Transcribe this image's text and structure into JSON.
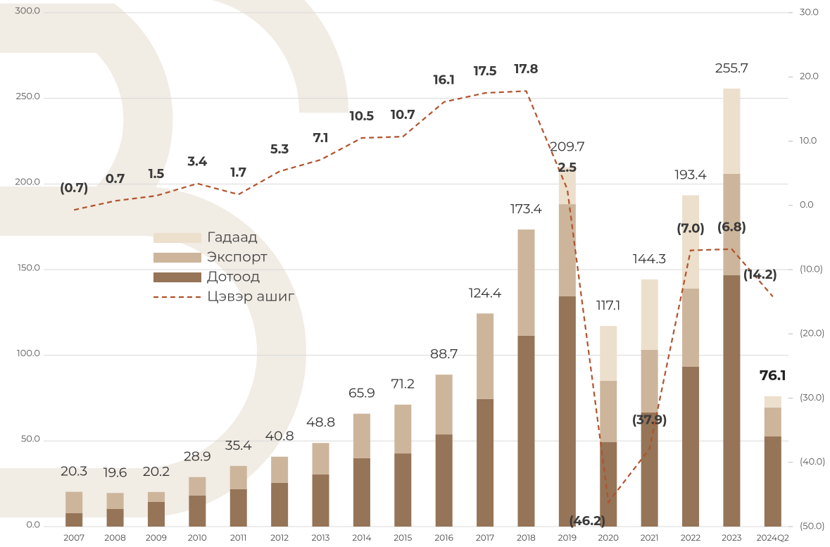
{
  "chart_data": {
    "type": "bar",
    "categories": [
      "2007",
      "2008",
      "2009",
      "2010",
      "2011",
      "2012",
      "2013",
      "2014",
      "2015",
      "2016",
      "2017",
      "2018",
      "2019",
      "2020",
      "2021",
      "2022",
      "2023",
      "2024Q2"
    ],
    "series": [
      {
        "name": "Дотоод",
        "color": "#957457",
        "values": [
          7.8,
          10.3,
          14.4,
          18.1,
          21.8,
          25.5,
          30.4,
          39.9,
          42.7,
          53.8,
          74.4,
          111.4,
          134.4,
          49.3,
          66.6,
          93.3,
          146.7,
          52.6
        ]
      },
      {
        "name": "Экспорт",
        "color": "#cdb59b",
        "values": [
          12.5,
          9.3,
          5.8,
          10.8,
          13.6,
          15.3,
          18.4,
          26.0,
          28.5,
          34.9,
          50.0,
          62.0,
          53.8,
          35.8,
          36.6,
          45.6,
          59.2,
          16.9
        ]
      },
      {
        "name": "Гадаад",
        "color": "#ecdfcc",
        "values": [
          0,
          0,
          0,
          0,
          0,
          0,
          0,
          0,
          0,
          0,
          0,
          0,
          21.5,
          32.0,
          41.1,
          54.5,
          49.8,
          6.6
        ]
      },
      {
        "name": "Цэвэр ашиг",
        "color": "#b0532d",
        "axis": "y2",
        "type": "line",
        "dashed": true,
        "values": [
          -0.7,
          0.7,
          1.5,
          3.4,
          1.7,
          5.3,
          7.1,
          10.5,
          10.7,
          16.1,
          17.5,
          17.8,
          2.5,
          -46.2,
          -37.9,
          -7.0,
          -6.8,
          -14.2
        ],
        "value_labels": [
          "(0.7)",
          "0.7",
          "1.5",
          "3.4",
          "1.7",
          "5.3",
          "7.1",
          "10.5",
          "10.7",
          "16.1",
          "17.5",
          "17.8",
          "2.5",
          "(46.2)",
          "(37.9)",
          "(7.0)",
          "(6.8)",
          "(14.2)"
        ]
      }
    ],
    "totals": [
      20.3,
      19.6,
      20.2,
      28.9,
      35.4,
      40.8,
      48.8,
      65.9,
      71.2,
      88.7,
      124.4,
      173.4,
      209.7,
      117.1,
      144.3,
      193.4,
      255.7,
      76.1
    ],
    "ylim": [
      0,
      300
    ],
    "yticks": [
      {
        "value": 0,
        "label": "0.0"
      },
      {
        "value": 50,
        "label": "50.0"
      },
      {
        "value": 100,
        "label": "100.0"
      },
      {
        "value": 150,
        "label": "150.0"
      },
      {
        "value": 200,
        "label": "200.0"
      },
      {
        "value": 250,
        "label": "250.0"
      },
      {
        "value": 300,
        "label": "300.0"
      }
    ],
    "y2lim": [
      -50,
      30
    ],
    "y2ticks": [
      {
        "value": -50,
        "label": "(50.0)"
      },
      {
        "value": -40,
        "label": "(40.0)"
      },
      {
        "value": -30,
        "label": "(30.0)"
      },
      {
        "value": -20,
        "label": "(20.0)"
      },
      {
        "value": -10,
        "label": "(10.0)"
      },
      {
        "value": 0,
        "label": "0.0"
      },
      {
        "value": 10,
        "label": "10.0"
      },
      {
        "value": 20,
        "label": "20.0"
      },
      {
        "value": 30,
        "label": "30.0"
      }
    ],
    "grid": true,
    "legend": "center-left"
  }
}
